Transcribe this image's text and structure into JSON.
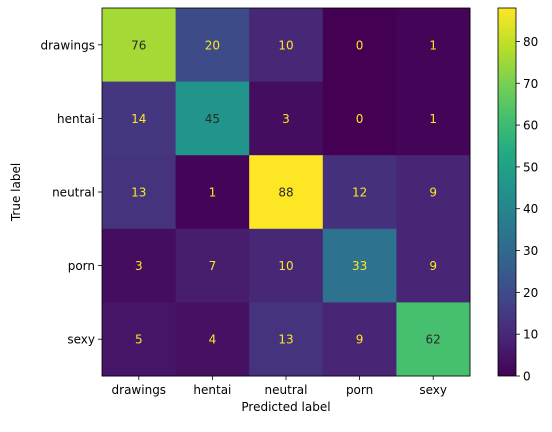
{
  "chart_data": {
    "type": "heatmap",
    "title": "",
    "xlabel": "Predicted label",
    "ylabel": "True label",
    "x_categories": [
      "drawings",
      "hentai",
      "neutral",
      "porn",
      "sexy"
    ],
    "y_categories": [
      "drawings",
      "hentai",
      "neutral",
      "porn",
      "sexy"
    ],
    "matrix": [
      [
        76,
        20,
        10,
        0,
        1
      ],
      [
        14,
        45,
        3,
        0,
        1
      ],
      [
        13,
        1,
        88,
        12,
        9
      ],
      [
        3,
        7,
        10,
        33,
        9
      ],
      [
        5,
        4,
        13,
        9,
        62
      ]
    ],
    "colormap": "viridis",
    "vmin": 0,
    "vmax": 88,
    "colorbar_ticks": [
      0,
      10,
      20,
      30,
      40,
      50,
      60,
      70,
      80
    ],
    "text_color_dark": "#2a2a2a",
    "text_color_light": "#fde725",
    "grid": false
  }
}
